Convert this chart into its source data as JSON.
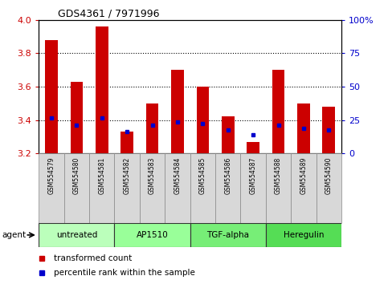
{
  "title": "GDS4361 / 7971996",
  "samples": [
    "GSM554579",
    "GSM554580",
    "GSM554581",
    "GSM554582",
    "GSM554583",
    "GSM554584",
    "GSM554585",
    "GSM554586",
    "GSM554587",
    "GSM554588",
    "GSM554589",
    "GSM554590"
  ],
  "red_values": [
    3.88,
    3.63,
    3.96,
    3.33,
    3.5,
    3.7,
    3.6,
    3.42,
    3.27,
    3.7,
    3.5,
    3.48
  ],
  "blue_values": [
    3.41,
    3.37,
    3.41,
    3.33,
    3.37,
    3.39,
    3.38,
    3.34,
    3.31,
    3.37,
    3.35,
    3.34
  ],
  "ylim_left": [
    3.2,
    4.0
  ],
  "ylim_right": [
    0,
    100
  ],
  "yticks_left": [
    3.2,
    3.4,
    3.6,
    3.8,
    4.0
  ],
  "yticks_right": [
    0,
    25,
    50,
    75,
    100
  ],
  "ytick_labels_right": [
    "0",
    "25",
    "50",
    "75",
    "100%"
  ],
  "groups": [
    {
      "label": "untreated",
      "start": 0,
      "end": 3,
      "color": "#bbffbb"
    },
    {
      "label": "AP1510",
      "start": 3,
      "end": 6,
      "color": "#99ff99"
    },
    {
      "label": "TGF-alpha",
      "start": 6,
      "end": 9,
      "color": "#77ee77"
    },
    {
      "label": "Heregulin",
      "start": 9,
      "end": 12,
      "color": "#55dd55"
    }
  ],
  "bar_color": "#cc0000",
  "dot_color": "#0000cc",
  "bar_width": 0.5,
  "baseline": 3.2,
  "grid_color": "#000000",
  "tick_color_left": "#cc0000",
  "tick_color_right": "#0000cc",
  "legend_items": [
    {
      "color": "#cc0000",
      "label": "transformed count"
    },
    {
      "color": "#0000cc",
      "label": "percentile rank within the sample"
    }
  ],
  "agent_label": "agent"
}
